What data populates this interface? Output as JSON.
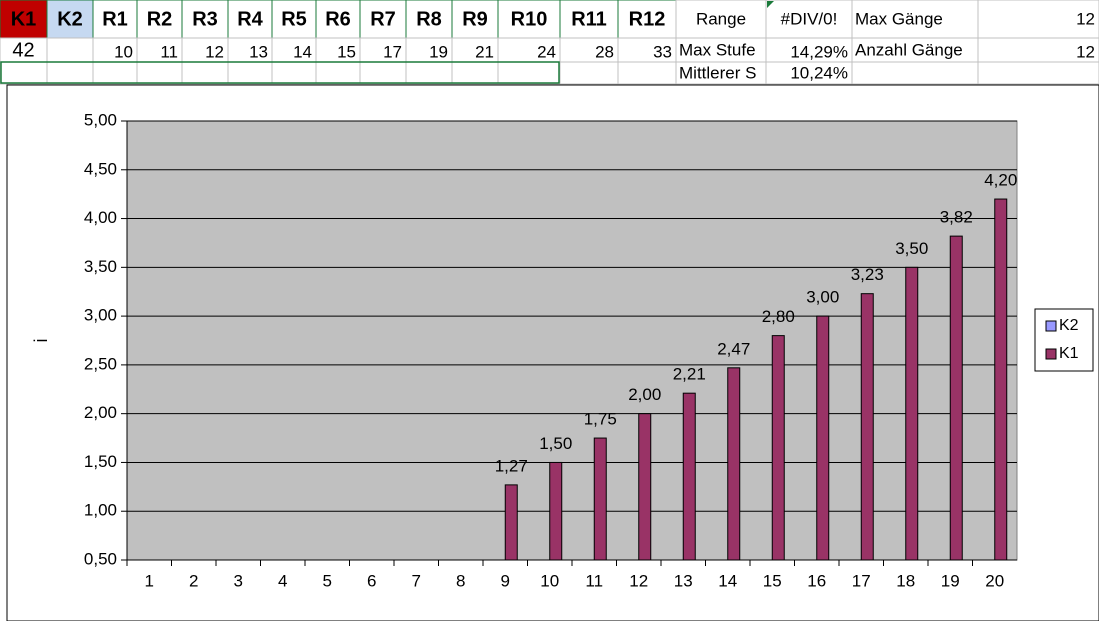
{
  "sheet": {
    "rows": [
      [
        "K1",
        "K2",
        "R1",
        "R2",
        "R3",
        "R4",
        "R5",
        "R6",
        "R7",
        "R8",
        "R9",
        "R10",
        "R11",
        "R12",
        "Range",
        "#DIV/0!",
        "Max Gänge",
        "12"
      ],
      [
        "42",
        "10",
        "11",
        "12",
        "13",
        "14",
        "15",
        "17",
        "19",
        "21",
        "24",
        "28",
        "33",
        "Max Stufe",
        "14,29%",
        "Anzahl Gänge",
        "12"
      ],
      [
        "Mittlerer S",
        "10,24%"
      ]
    ]
  },
  "chart_data": {
    "type": "bar",
    "y_label": "i",
    "categories": [
      "1",
      "2",
      "3",
      "4",
      "5",
      "6",
      "7",
      "8",
      "9",
      "10",
      "11",
      "12",
      "13",
      "14",
      "15",
      "16",
      "17",
      "18",
      "19",
      "20"
    ],
    "series": [
      {
        "name": "K2",
        "color": "#9999ff",
        "values": [
          null,
          null,
          null,
          null,
          null,
          null,
          null,
          null,
          null,
          null,
          null,
          null,
          null,
          null,
          null,
          null,
          null,
          null,
          null,
          null
        ]
      },
      {
        "name": "K1",
        "color": "#993366",
        "values": [
          null,
          null,
          null,
          null,
          null,
          null,
          null,
          null,
          1.27,
          1.5,
          1.75,
          2.0,
          2.21,
          2.47,
          2.8,
          3.0,
          3.23,
          3.5,
          3.82,
          4.2
        ],
        "value_labels": [
          null,
          null,
          null,
          null,
          null,
          null,
          null,
          null,
          "1,27",
          "1,50",
          "1,75",
          "2,00",
          "2,21",
          "2,47",
          "2,80",
          "3,00",
          "3,23",
          "3,50",
          "3,82",
          "4,20"
        ]
      }
    ],
    "ylim": [
      0.5,
      5.0
    ],
    "yticks": [
      {
        "value": 0.5,
        "label": "0,50"
      },
      {
        "value": 1.0,
        "label": "1,00"
      },
      {
        "value": 1.5,
        "label": "1,50"
      },
      {
        "value": 2.0,
        "label": "2,00"
      },
      {
        "value": 2.5,
        "label": "2,50"
      },
      {
        "value": 3.0,
        "label": "3,00"
      },
      {
        "value": 3.5,
        "label": "3,50"
      },
      {
        "value": 4.0,
        "label": "4,00"
      },
      {
        "value": 4.5,
        "label": "4,50"
      },
      {
        "value": 5.0,
        "label": "5,00"
      }
    ],
    "grid": true,
    "legend": "right",
    "plot_background": "#c0c0c0"
  }
}
